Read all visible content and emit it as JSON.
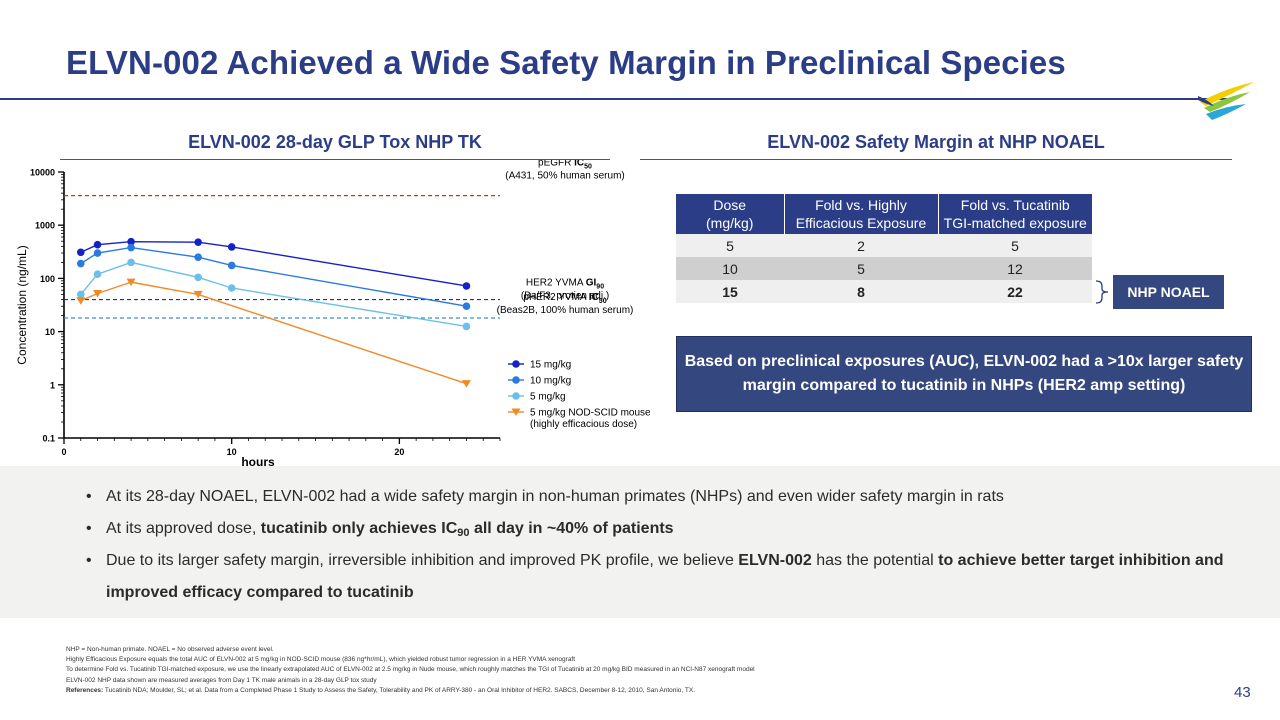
{
  "slide": {
    "title": "ELVN-002 Achieved a Wide Safety Margin in Preclinical Species",
    "page_number": "43",
    "accent_color": "#2b3d86",
    "logo": "brand-swoosh-logo"
  },
  "left_section": {
    "title": "ELVN-002 28-day GLP Tox NHP TK"
  },
  "right_section": {
    "title": "ELVN-002 Safety Margin at NHP NOAEL"
  },
  "chart_data": {
    "type": "line",
    "xlabel": "hours",
    "ylabel": "Concentration (ng/mL)",
    "y_scale": "log",
    "xlim": [
      0,
      26
    ],
    "ylim": [
      0.1,
      10000
    ],
    "x_ticks": [
      "0",
      "10",
      "20"
    ],
    "y_ticks": [
      "0.1",
      "1",
      "10",
      "100",
      "1000",
      "10000"
    ],
    "series": [
      {
        "name": "15 mg/kg",
        "color": "#1421c8",
        "marker": "circle",
        "x": [
          1,
          2,
          4,
          8,
          10,
          24
        ],
        "y": [
          310,
          430,
          490,
          480,
          390,
          72
        ]
      },
      {
        "name": "10 mg/kg",
        "color": "#2a7ae0",
        "marker": "circle",
        "x": [
          1,
          2,
          4,
          8,
          10,
          24
        ],
        "y": [
          190,
          300,
          380,
          250,
          175,
          30
        ]
      },
      {
        "name": "5 mg/kg",
        "color": "#6cbfe8",
        "marker": "circle",
        "x": [
          1,
          2,
          4,
          8,
          10,
          24
        ],
        "y": [
          50,
          120,
          200,
          105,
          66,
          12.5
        ]
      },
      {
        "name": "5 mg/kg NOD-SCID mouse",
        "name_line2": "(highly efficacious dose)",
        "color": "#f08a24",
        "marker": "triangle-down",
        "x": [
          1,
          2,
          4,
          8,
          24
        ],
        "y": [
          38,
          52,
          85,
          50,
          1.05
        ]
      }
    ],
    "reference_lines": [
      {
        "label": "pEGFR ",
        "label_bold": "IC",
        "label_sub": "50",
        "sublabel": "(A431, 50% human serum)",
        "y": 3600,
        "color": "#c0392b"
      },
      {
        "label": "HER2 YVMA ",
        "label_bold": "GI",
        "label_sub": "90",
        "sublabel": "(Ba/F3, protien adj.)",
        "y": 40,
        "color": "#1c2f9e"
      },
      {
        "label": "pHER2 YVMA ",
        "label_bold": "IC",
        "label_sub": "50",
        "sublabel": "(Beas2B, 100% human serum)",
        "y": 18,
        "color": "#3a8fcf"
      }
    ],
    "legend_position": "right"
  },
  "safety_table": {
    "headers": [
      [
        "Dose",
        "(mg/kg)"
      ],
      [
        "Fold vs. Highly",
        "Efficacious Exposure"
      ],
      [
        "Fold vs. Tucatinib",
        "TGI-matched exposure"
      ]
    ],
    "rows": [
      [
        "5",
        "2",
        "5"
      ],
      [
        "10",
        "5",
        "12"
      ],
      [
        "15",
        "8",
        "22"
      ]
    ]
  },
  "noael_label": "NHP NOAEL",
  "callout": "Based on preclinical exposures (AUC), ELVN-002 had a >10x larger safety margin compared to tucatinib in NHPs (HER2 amp setting)",
  "bullets": {
    "b1": "At its 28-day NOAEL, ELVN-002 had a wide safety margin in non-human primates (NHPs) and even wider safety margin in rats",
    "b2_pre": "At its approved dose, ",
    "b2_bold": "tucatinib only achieves IC",
    "b2_sub": "90",
    "b2_bold_end": " all day in ~40% of patients",
    "b3_pre": "Due to its larger safety margin, irreversible inhibition and improved PK profile, we believe ",
    "b3_bold1": "ELVN-002",
    "b3_mid": " has the potential ",
    "b3_bold2": "to achieve better target inhibition and improved efficacy compared to tucatinib"
  },
  "footnotes": {
    "f1": "NHP = Non-human primate. NOAEL = No observed adverse event level.",
    "f2": "Highly Efficacious Exposure equals the total AUC of ELVN-002 at 5 mg/kg in NOD-SCID mouse (836 ng*hr/mL), which yielded robust tumor regression in a HER YVMA xenograft",
    "f3": "To determine Fold vs. Tucatinib TGI-matched exposure, we use the linearly extrapolated AUC of ELVN-002 at 2.5 mg/kg in Nude mouse, which roughly matches the TGI of Tucatinib at 20 mg/kg BID measured in an NCI-N87 xenograft model",
    "f4": "ELVN-002 NHP data shown are measured averages from Day 1 TK male animals in a 28-day GLP tox study",
    "ref_label": "References:",
    "ref_text": " Tucatinib NDA; Moulder, SL; et al. Data from a Completed Phase 1 Study to Assess the Safety, Tolerability and PK of ARRY-380 - an Oral Inhibitor of HER2. SABCS, December 8-12, 2010, San Antonio, TX."
  }
}
